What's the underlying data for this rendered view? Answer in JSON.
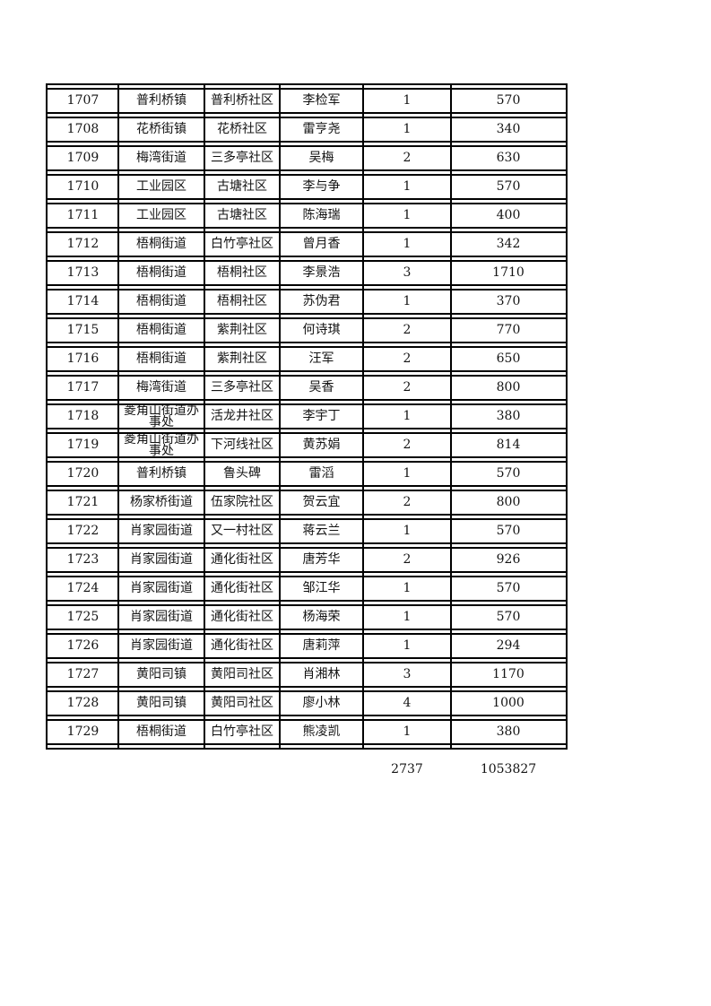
{
  "table": {
    "rows": [
      {
        "serial": "1707",
        "town": "普利桥镇",
        "community": "普利桥社区",
        "name": "李检军",
        "count": "1",
        "amount": "570"
      },
      {
        "serial": "1708",
        "town": "花桥街镇",
        "community": "花桥社区",
        "name": "雷亨尧",
        "count": "1",
        "amount": "340"
      },
      {
        "serial": "1709",
        "town": "梅湾街道",
        "community": "三多亭社区",
        "name": "吴梅",
        "count": "2",
        "amount": "630"
      },
      {
        "serial": "1710",
        "town": "工业园区",
        "community": "古塘社区",
        "name": "李与争",
        "count": "1",
        "amount": "570"
      },
      {
        "serial": "1711",
        "town": "工业园区",
        "community": "古塘社区",
        "name": "陈海瑞",
        "count": "1",
        "amount": "400"
      },
      {
        "serial": "1712",
        "town": "梧桐街道",
        "community": "白竹亭社区",
        "name": "曾月香",
        "count": "1",
        "amount": "342"
      },
      {
        "serial": "1713",
        "town": "梧桐街道",
        "community": "梧桐社区",
        "name": "李景浩",
        "count": "3",
        "amount": "1710"
      },
      {
        "serial": "1714",
        "town": "梧桐街道",
        "community": "梧桐社区",
        "name": "苏伪君",
        "count": "1",
        "amount": "370"
      },
      {
        "serial": "1715",
        "town": "梧桐街道",
        "community": "紫荆社区",
        "name": "何诗琪",
        "count": "2",
        "amount": "770"
      },
      {
        "serial": "1716",
        "town": "梧桐街道",
        "community": "紫荆社区",
        "name": "汪军",
        "count": "2",
        "amount": "650"
      },
      {
        "serial": "1717",
        "town": "梅湾街道",
        "community": "三多亭社区",
        "name": "吴香",
        "count": "2",
        "amount": "800"
      },
      {
        "serial": "1718",
        "town": "菱角山街道办事处",
        "community": "活龙井社区",
        "name": "李宇丁",
        "count": "1",
        "amount": "380"
      },
      {
        "serial": "1719",
        "town": "菱角山街道办事处",
        "community": "下河线社区",
        "name": "黄苏娟",
        "count": "2",
        "amount": "814"
      },
      {
        "serial": "1720",
        "town": "普利桥镇",
        "community": "鲁头碑",
        "name": "雷滔",
        "count": "1",
        "amount": "570"
      },
      {
        "serial": "1721",
        "town": "杨家桥街道",
        "community": "伍家院社区",
        "name": "贺云宜",
        "count": "2",
        "amount": "800"
      },
      {
        "serial": "1722",
        "town": "肖家园街道",
        "community": "又一村社区",
        "name": "蒋云兰",
        "count": "1",
        "amount": "570"
      },
      {
        "serial": "1723",
        "town": "肖家园街道",
        "community": "通化街社区",
        "name": "唐芳华",
        "count": "2",
        "amount": "926"
      },
      {
        "serial": "1724",
        "town": "肖家园街道",
        "community": "通化街社区",
        "name": "邹江华",
        "count": "1",
        "amount": "570"
      },
      {
        "serial": "1725",
        "town": "肖家园街道",
        "community": "通化街社区",
        "name": "杨海荣",
        "count": "1",
        "amount": "570"
      },
      {
        "serial": "1726",
        "town": "肖家园街道",
        "community": "通化街社区",
        "name": "唐莉萍",
        "count": "1",
        "amount": "294"
      },
      {
        "serial": "1727",
        "town": "黄阳司镇",
        "community": "黄阳司社区",
        "name": "肖湘林",
        "count": "3",
        "amount": "1170"
      },
      {
        "serial": "1728",
        "town": "黄阳司镇",
        "community": "黄阳司社区",
        "name": "廖小林",
        "count": "4",
        "amount": "1000"
      },
      {
        "serial": "1729",
        "town": "梧桐街道",
        "community": "白竹亭社区",
        "name": "熊凌凯",
        "count": "1",
        "amount": "380"
      }
    ],
    "totals": {
      "count": "2737",
      "amount": "1053827"
    }
  }
}
